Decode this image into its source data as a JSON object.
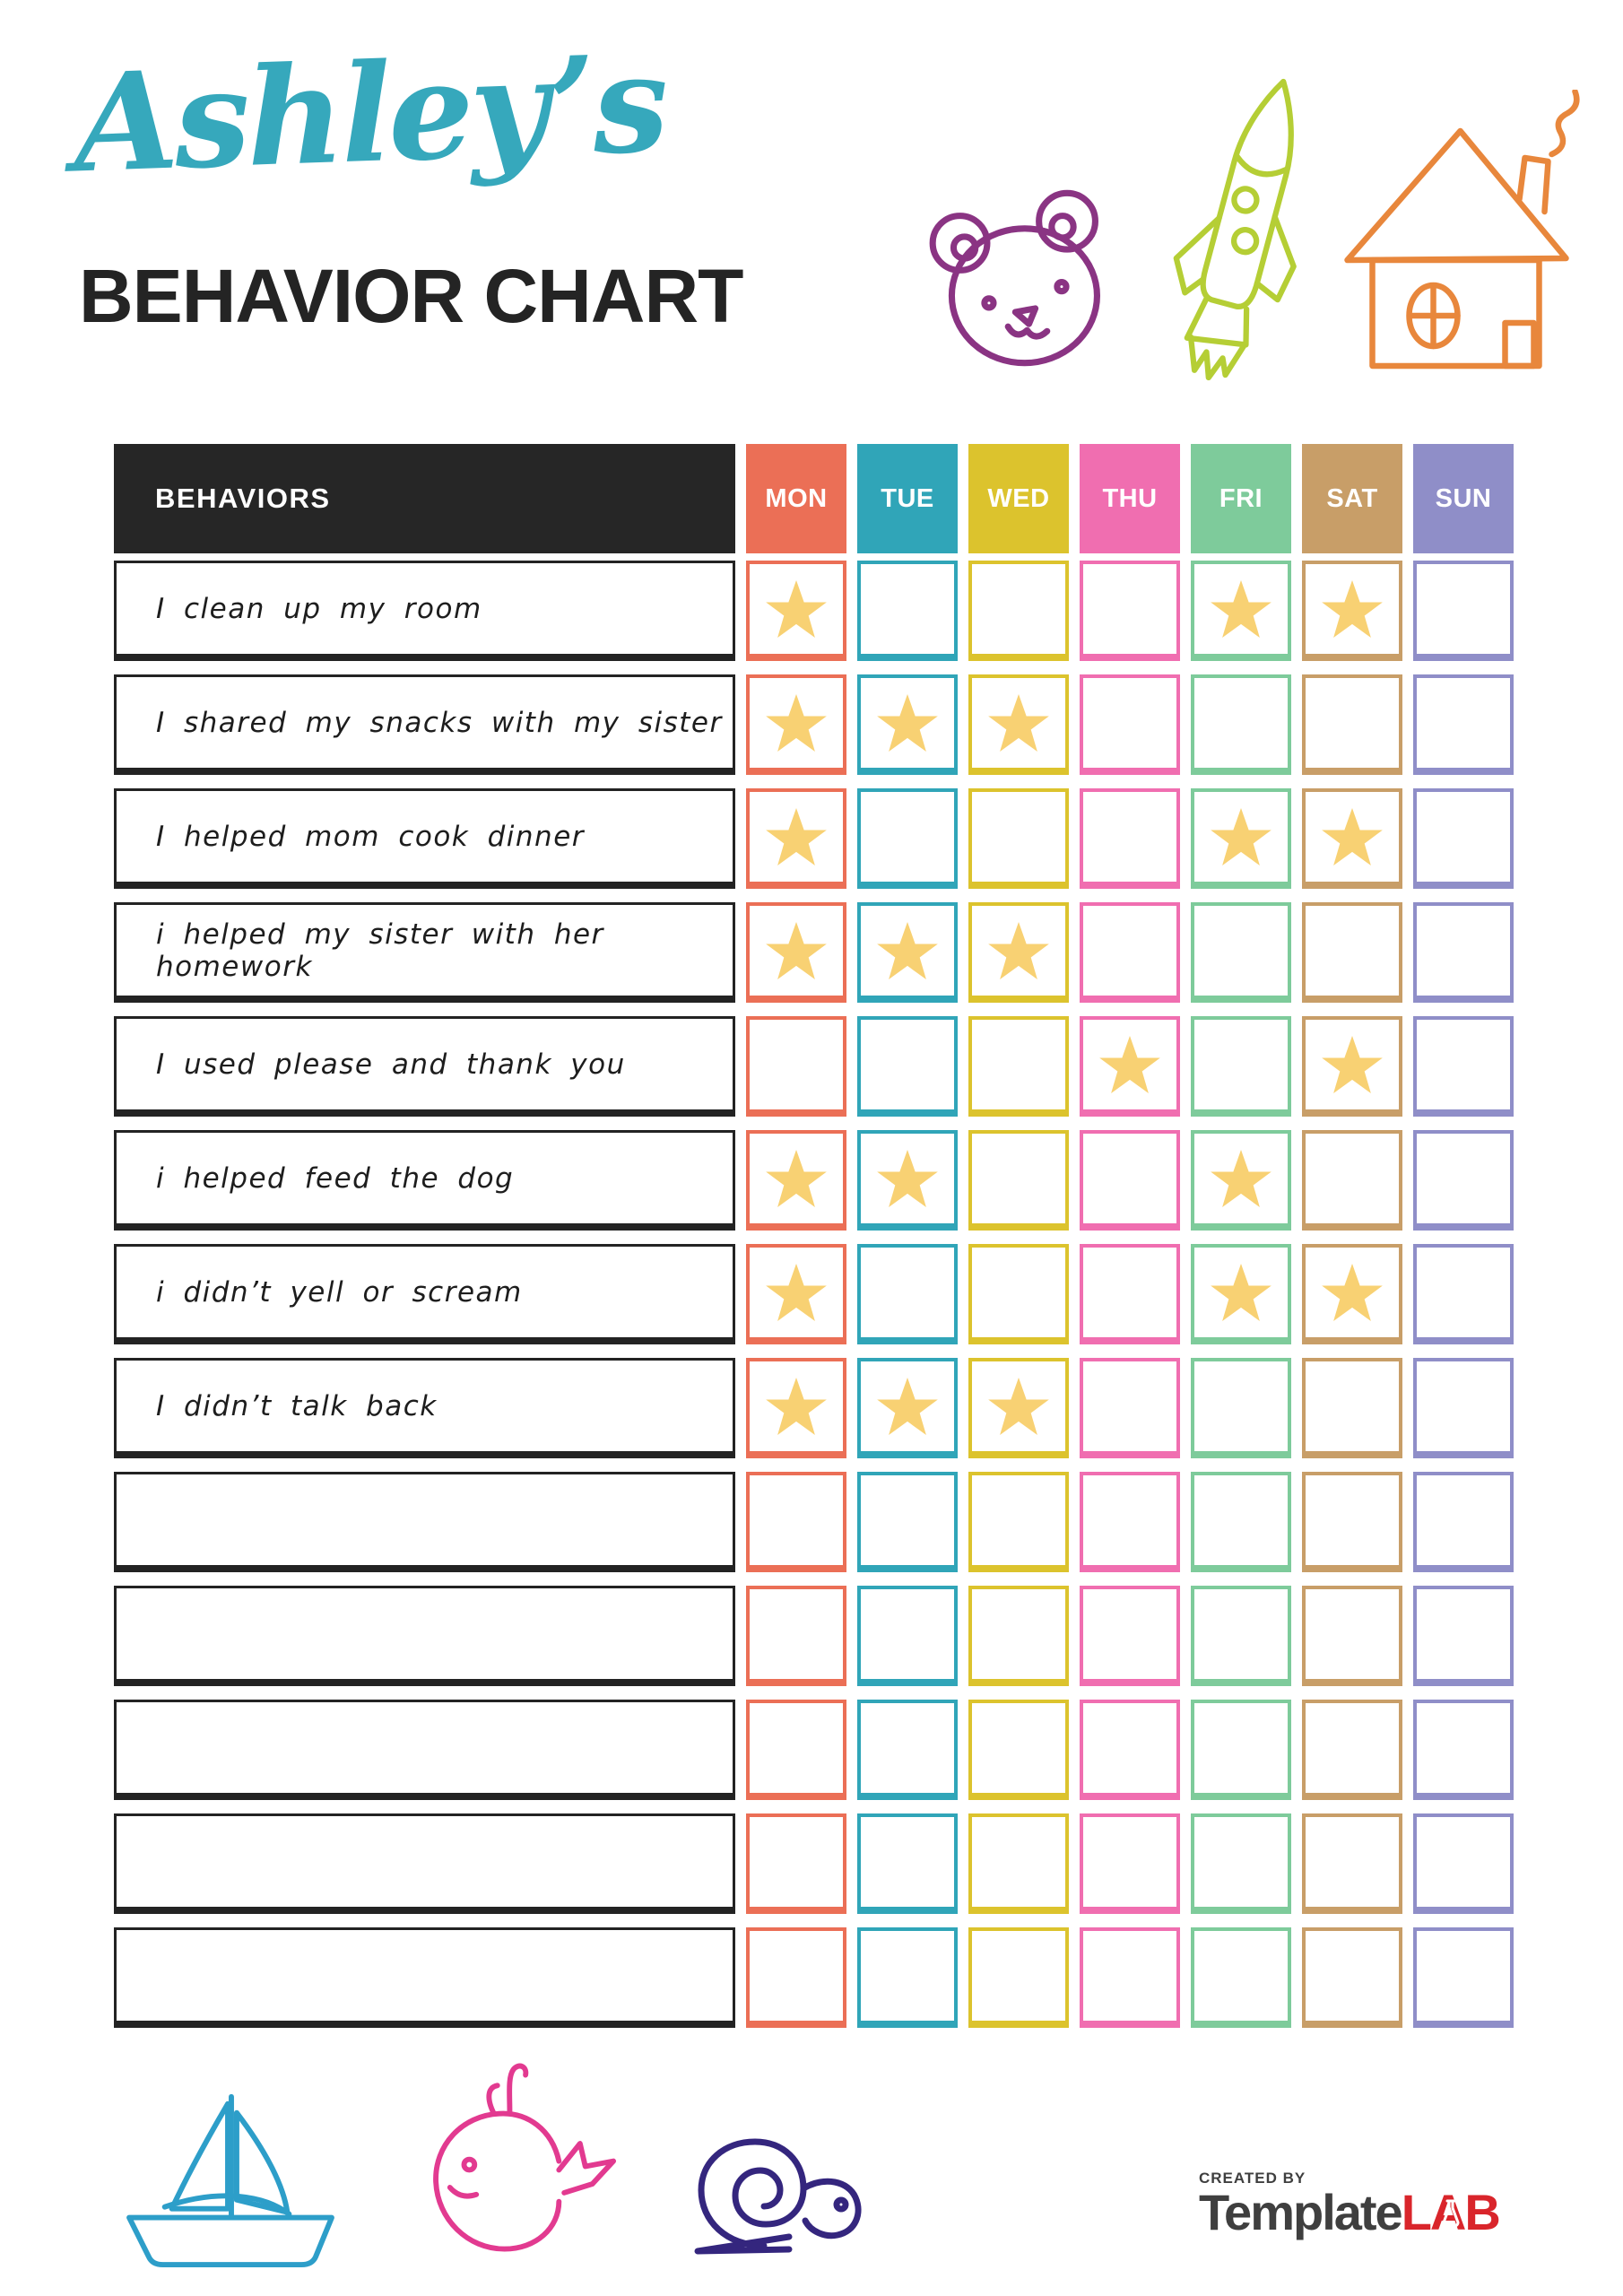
{
  "header": {
    "name_script": "Ashley’s",
    "title": "BEHAVIOR CHART"
  },
  "table": {
    "behaviors_label": "BEHAVIORS",
    "days": [
      {
        "label": "MON",
        "color": "#EB6F56"
      },
      {
        "label": "TUE",
        "color": "#30A5B8"
      },
      {
        "label": "WED",
        "color": "#DCC32D"
      },
      {
        "label": "THU",
        "color": "#F06EB0"
      },
      {
        "label": "FRI",
        "color": "#7ECB9B"
      },
      {
        "label": "SAT",
        "color": "#C89E68"
      },
      {
        "label": "SUN",
        "color": "#8F8EC8"
      }
    ],
    "rows": [
      {
        "label": "I clean up my room",
        "stars": [
          1,
          0,
          0,
          0,
          1,
          1,
          0
        ]
      },
      {
        "label": "I shared my snacks with my sister",
        "stars": [
          1,
          1,
          1,
          0,
          0,
          0,
          0
        ]
      },
      {
        "label": "I helped mom cook dinner",
        "stars": [
          1,
          0,
          0,
          0,
          1,
          1,
          0
        ]
      },
      {
        "label": "i helped my sister with her homework",
        "stars": [
          1,
          1,
          1,
          0,
          0,
          0,
          0
        ]
      },
      {
        "label": "I used please and thank you",
        "stars": [
          0,
          0,
          0,
          1,
          0,
          1,
          0
        ]
      },
      {
        "label": "i helped feed the dog",
        "stars": [
          1,
          1,
          0,
          0,
          1,
          0,
          0
        ]
      },
      {
        "label": "i didn’t yell or scream",
        "stars": [
          1,
          0,
          0,
          0,
          1,
          1,
          0
        ]
      },
      {
        "label": "I didn’t talk back",
        "stars": [
          1,
          1,
          1,
          0,
          0,
          0,
          0
        ]
      },
      {
        "label": "",
        "stars": [
          0,
          0,
          0,
          0,
          0,
          0,
          0
        ]
      },
      {
        "label": "",
        "stars": [
          0,
          0,
          0,
          0,
          0,
          0,
          0
        ]
      },
      {
        "label": "",
        "stars": [
          0,
          0,
          0,
          0,
          0,
          0,
          0
        ]
      },
      {
        "label": "",
        "stars": [
          0,
          0,
          0,
          0,
          0,
          0,
          0
        ]
      },
      {
        "label": "",
        "stars": [
          0,
          0,
          0,
          0,
          0,
          0,
          0
        ]
      }
    ]
  },
  "footer": {
    "created_by": "CREATED BY",
    "brand_gray": "Template",
    "brand_red": "LAB"
  },
  "colors": {
    "accent_teal": "#36A8BC",
    "title_black": "#242424",
    "header_bg": "#262626",
    "star": "#F8D173",
    "bear": "#8A3483",
    "rocket": "#B5CE35",
    "house": "#E8873C",
    "boat": "#2D9EC9",
    "whale": "#E23A90",
    "snail": "#34267E",
    "logo_gray": "#3F3F3F",
    "logo_red": "#D9252B"
  }
}
